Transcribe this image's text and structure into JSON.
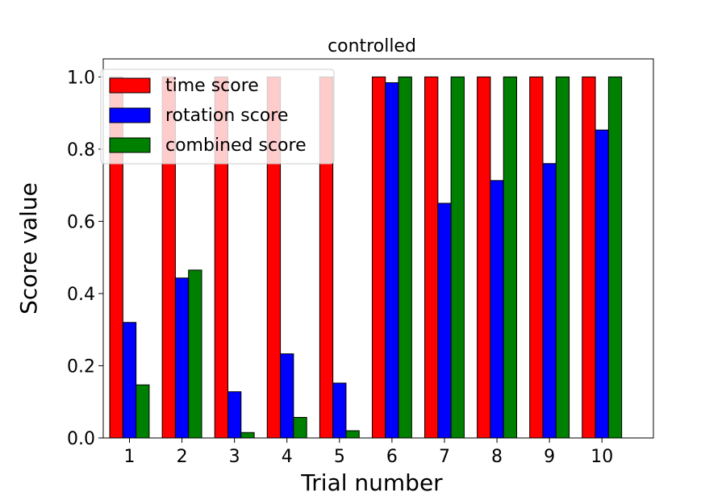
{
  "chart_data": {
    "type": "bar",
    "title": "controlled",
    "xlabel": "Trial number",
    "ylabel": "Score value",
    "ylim": [
      0,
      1.05
    ],
    "yticks": [
      "0.0",
      "0.2",
      "0.4",
      "0.6",
      "0.8",
      "1.0"
    ],
    "categories": [
      "1",
      "2",
      "3",
      "4",
      "5",
      "6",
      "7",
      "8",
      "9",
      "10"
    ],
    "series": [
      {
        "name": "time score",
        "color": "#ff0000",
        "values": [
          1.0,
          1.0,
          1.0,
          1.0,
          1.0,
          1.0,
          1.0,
          1.0,
          1.0,
          1.0
        ]
      },
      {
        "name": "rotation score",
        "color": "#0000ff",
        "values": [
          0.32,
          0.443,
          0.128,
          0.233,
          0.152,
          0.984,
          0.65,
          0.713,
          0.76,
          0.853
        ]
      },
      {
        "name": "combined score",
        "color": "#008000",
        "values": [
          0.147,
          0.465,
          0.015,
          0.057,
          0.02,
          1.0,
          1.0,
          1.0,
          1.0,
          1.0
        ]
      }
    ],
    "grid": false,
    "legend": "upper-left"
  }
}
